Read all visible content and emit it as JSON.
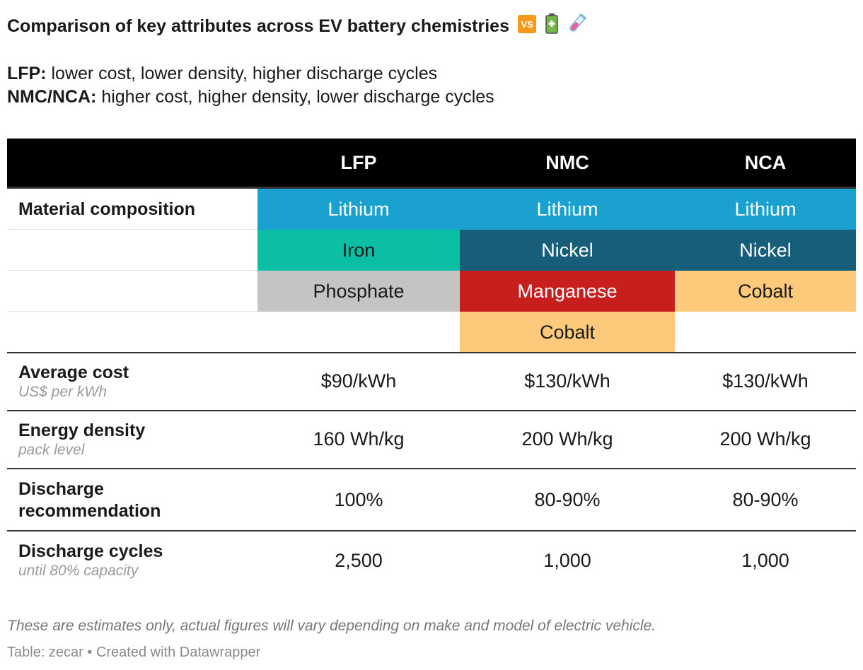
{
  "chart_data": {
    "type": "table",
    "title": "Comparison of key attributes across EV battery chemistries",
    "title_emojis": [
      "vs-icon",
      "battery-icon",
      "test-tube-icon"
    ],
    "subtitle": [
      {
        "label": "LFP:",
        "text": " lower cost, lower density, higher discharge cycles"
      },
      {
        "label": "NMC/NCA:",
        "text": " higher cost, higher density, lower discharge cycles"
      }
    ],
    "columns": [
      "LFP",
      "NMC",
      "NCA"
    ],
    "material_composition_label": "Material composition",
    "composition": {
      "LFP": [
        "Lithium",
        "Iron",
        "Phosphate"
      ],
      "NMC": [
        "Lithium",
        "Nickel",
        "Manganese",
        "Cobalt"
      ],
      "NCA": [
        "Lithium",
        "Nickel",
        "Cobalt"
      ]
    },
    "material_colors": {
      "Lithium": "#1aa1cf",
      "Iron": "#0abfa3",
      "Phosphate": "#c4c4c4",
      "Nickel": "#165e7a",
      "Manganese": "#c71e1e",
      "Cobalt": "#fdca7b"
    },
    "rows": [
      {
        "label": "Average cost",
        "sublabel": "US$ per kWh",
        "values": [
          "$90/kWh",
          "$130/kWh",
          "$130/kWh"
        ]
      },
      {
        "label": "Energy density",
        "sublabel": "pack level",
        "values": [
          "160 Wh/kg",
          "200 Wh/kg",
          "200 Wh/kg"
        ]
      },
      {
        "label": "Discharge recommendation",
        "label_lines": [
          "Discharge",
          "recommendation"
        ],
        "sublabel": "",
        "values": [
          "100%",
          "80-90%",
          "80-90%"
        ]
      },
      {
        "label": "Discharge cycles",
        "sublabel": "until 80% capacity",
        "values": [
          "2,500",
          "1,000",
          "1,000"
        ]
      }
    ],
    "notes": "These are estimates only, actual figures will vary depending on make and model of electric vehicle.",
    "source": "Table: zecar • Created with Datawrapper"
  }
}
